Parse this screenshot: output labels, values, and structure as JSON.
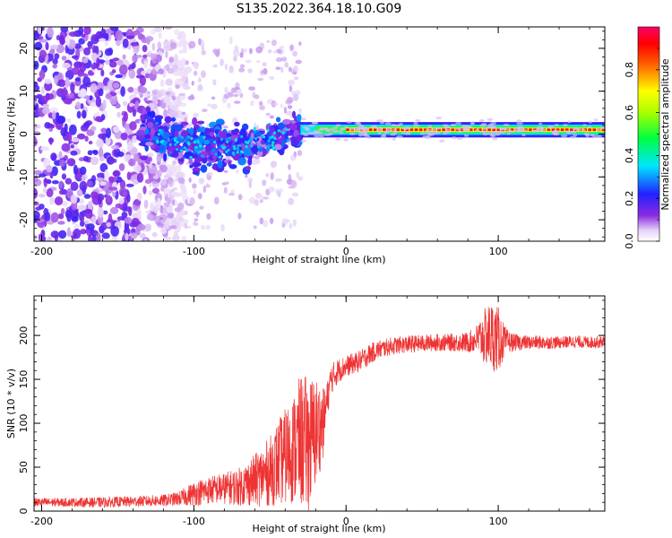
{
  "title": "S135.2022.364.18.10.G09",
  "chart_data": [
    {
      "type": "heatmap",
      "xlabel": "Height of straight line (km)",
      "ylabel": "Frequency (Hz)",
      "xlim": [
        -205,
        170
      ],
      "ylim": [
        -25,
        25
      ],
      "xticks": [
        -200,
        -100,
        0,
        100
      ],
      "yticks": [
        -20,
        -10,
        0,
        10,
        20
      ],
      "colorbar": {
        "label": "Normalized spectral amplitude",
        "ticks": [
          "0.0",
          "0.2",
          "0.4",
          "0.6",
          "0.8"
        ],
        "range": [
          0,
          1
        ],
        "colormap": "rainbow (white-purple-blue-cyan-green-yellow-red-magenta)"
      },
      "features": {
        "noise_region_x": [
          -205,
          -130
        ],
        "transition_region_x": [
          -135,
          -30
        ],
        "signal_region_x": [
          -30,
          170
        ],
        "signal_frequency_hz": 1
      }
    },
    {
      "type": "line",
      "xlabel": "Height of straight line (km)",
      "ylabel": "SNR (10 * v/v)",
      "xlim": [
        -205,
        170
      ],
      "ylim": [
        0,
        245
      ],
      "xticks": [
        -200,
        -100,
        0,
        100
      ],
      "yticks": [
        0,
        50,
        100,
        150,
        200
      ],
      "series": [
        {
          "color": "#ee3333",
          "x": [
            -205,
            -180,
            -160,
            -140,
            -120,
            -110,
            -100,
            -90,
            -80,
            -70,
            -60,
            -50,
            -45,
            -40,
            -35,
            -30,
            -25,
            -20,
            -15,
            -12,
            -10,
            -5,
            0,
            5,
            10,
            15,
            20,
            30,
            40,
            50,
            60,
            70,
            80,
            85,
            90,
            95,
            100,
            105,
            110,
            120,
            130,
            140,
            150,
            160,
            170
          ],
          "y": [
            10,
            10,
            10,
            11,
            12,
            14,
            20,
            24,
            26,
            28,
            35,
            45,
            55,
            62,
            70,
            80,
            75,
            90,
            100,
            130,
            150,
            160,
            165,
            168,
            172,
            178,
            183,
            188,
            190,
            191,
            192,
            192,
            192,
            195,
            198,
            200,
            195,
            193,
            192,
            192,
            192,
            192,
            193,
            192,
            193
          ],
          "noise": [
            5,
            5,
            6,
            6,
            7,
            8,
            14,
            16,
            18,
            22,
            30,
            40,
            48,
            55,
            62,
            75,
            80,
            65,
            40,
            20,
            18,
            14,
            12,
            12,
            12,
            12,
            11,
            10,
            10,
            10,
            10,
            10,
            12,
            15,
            30,
            40,
            38,
            15,
            10,
            8,
            8,
            7,
            7,
            7,
            7
          ]
        }
      ]
    }
  ]
}
